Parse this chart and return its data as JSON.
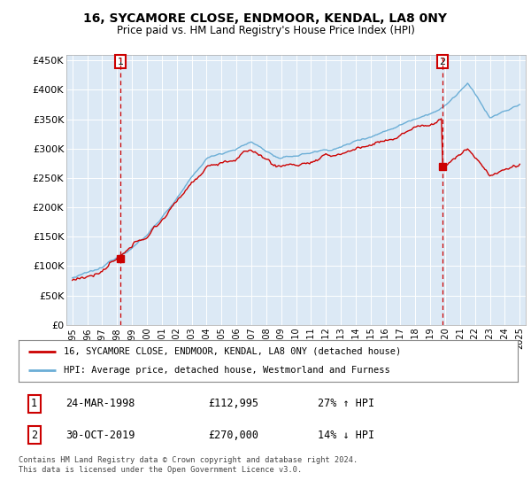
{
  "title": "16, SYCAMORE CLOSE, ENDMOOR, KENDAL, LA8 0NY",
  "subtitle": "Price paid vs. HM Land Registry's House Price Index (HPI)",
  "ylim": [
    0,
    460000
  ],
  "yticks": [
    0,
    50000,
    100000,
    150000,
    200000,
    250000,
    300000,
    350000,
    400000,
    450000
  ],
  "ytick_labels": [
    "£0",
    "£50K",
    "£100K",
    "£150K",
    "£200K",
    "£250K",
    "£300K",
    "£350K",
    "£400K",
    "£450K"
  ],
  "plot_bg_color": "#dce9f5",
  "sale1_date": 1998.23,
  "sale1_price": 112995,
  "sale2_date": 2019.83,
  "sale2_price": 270000,
  "legend_line1": "16, SYCAMORE CLOSE, ENDMOOR, KENDAL, LA8 0NY (detached house)",
  "legend_line2": "HPI: Average price, detached house, Westmorland and Furness",
  "table_row1": [
    "1",
    "24-MAR-1998",
    "£112,995",
    "27% ↑ HPI"
  ],
  "table_row2": [
    "2",
    "30-OCT-2019",
    "£270,000",
    "14% ↓ HPI"
  ],
  "footer": "Contains HM Land Registry data © Crown copyright and database right 2024.\nThis data is licensed under the Open Government Licence v3.0.",
  "hpi_color": "#6baed6",
  "price_color": "#cc0000",
  "grid_color": "#ffffff",
  "xtick_years": [
    1995,
    1996,
    1997,
    1998,
    1999,
    2000,
    2001,
    2002,
    2003,
    2004,
    2005,
    2006,
    2007,
    2008,
    2009,
    2010,
    2011,
    2012,
    2013,
    2014,
    2015,
    2016,
    2017,
    2018,
    2019,
    2020,
    2021,
    2022,
    2023,
    2024,
    2025
  ]
}
